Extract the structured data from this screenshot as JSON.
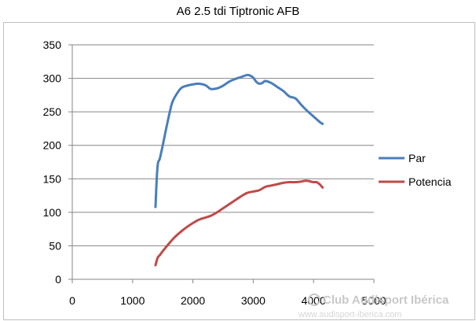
{
  "chart_data": {
    "type": "line",
    "title": "A6 2.5 tdi Tiptronic AFB",
    "xlabel": "",
    "ylabel": "",
    "xlim": [
      0,
      5000
    ],
    "ylim": [
      0,
      350
    ],
    "x_ticks": [
      0,
      1000,
      2000,
      3000,
      4000,
      5000
    ],
    "y_ticks": [
      0,
      50,
      100,
      150,
      200,
      250,
      300,
      350
    ],
    "x_tick_labels": [
      "0",
      "1000",
      "2000",
      "3000",
      "4000",
      "5000"
    ],
    "y_tick_labels": [
      "0",
      "50",
      "100",
      "150",
      "200",
      "250",
      "300",
      "350"
    ],
    "grid": "horizontal",
    "legend_position": "right",
    "series": [
      {
        "name": "Par",
        "color": "#4a7ebb",
        "x": [
          1380,
          1400,
          1420,
          1450,
          1500,
          1550,
          1600,
          1650,
          1700,
          1800,
          1900,
          2000,
          2100,
          2200,
          2250,
          2300,
          2400,
          2500,
          2600,
          2700,
          2800,
          2900,
          2950,
          3000,
          3050,
          3100,
          3150,
          3200,
          3300,
          3400,
          3500,
          3600,
          3700,
          3800,
          3900,
          4000,
          4100,
          4150
        ],
        "y": [
          108,
          150,
          173,
          180,
          200,
          222,
          243,
          262,
          272,
          285,
          289,
          291,
          292,
          290,
          287,
          284,
          285,
          289,
          295,
          299,
          302,
          305,
          304,
          301,
          295,
          292,
          293,
          296,
          293,
          287,
          281,
          273,
          270,
          260,
          251,
          243,
          235,
          232
        ]
      },
      {
        "name": "Potencia",
        "color": "#be4b48",
        "x": [
          1380,
          1400,
          1420,
          1450,
          1500,
          1600,
          1700,
          1800,
          1900,
          2000,
          2100,
          2200,
          2300,
          2400,
          2500,
          2600,
          2700,
          2800,
          2900,
          3000,
          3100,
          3200,
          3300,
          3400,
          3500,
          3600,
          3700,
          3800,
          3850,
          3900,
          3950,
          4000,
          4050,
          4100,
          4150
        ],
        "y": [
          21,
          28,
          33,
          36,
          42,
          53,
          63,
          71,
          78,
          84,
          89,
          92,
          95,
          100,
          106,
          112,
          118,
          124,
          129,
          131,
          133,
          138,
          140,
          142,
          144,
          145,
          145,
          146,
          147,
          147,
          146,
          145,
          145,
          142,
          137
        ]
      }
    ]
  },
  "watermark": {
    "text": "Club Audisport Ibérica",
    "url": "www.audisport-iberica.com",
    "color": "#c8c8c8"
  }
}
